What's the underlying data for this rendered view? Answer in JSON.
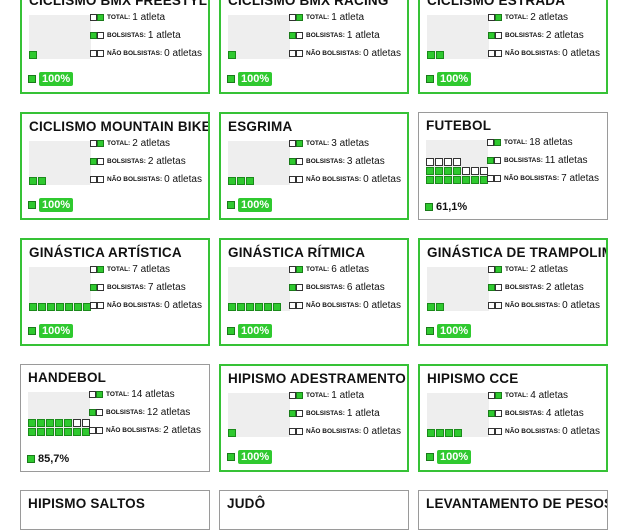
{
  "labels": {
    "total": "Total:",
    "bolsistas": "Bolsistas:",
    "nao_bolsistas": "Não Bolsistas:"
  },
  "cards": [
    {
      "title": "Ciclismo BMX Freestyle",
      "total": "1 atleta",
      "bolsistas": "1 atleta",
      "nao": "0 atletas",
      "pct": "100%",
      "on": 1,
      "off": 0,
      "full": true
    },
    {
      "title": "Ciclismo BMX Racing",
      "total": "1 atleta",
      "bolsistas": "1 atleta",
      "nao": "0 atletas",
      "pct": "100%",
      "on": 1,
      "off": 0,
      "full": true
    },
    {
      "title": "Ciclismo Estrada",
      "total": "2 atletas",
      "bolsistas": "2 atletas",
      "nao": "0 atletas",
      "pct": "100%",
      "on": 2,
      "off": 0,
      "full": true
    },
    {
      "title": "Ciclismo Mountain Bike",
      "total": "2 atletas",
      "bolsistas": "2 atletas",
      "nao": "0 atletas",
      "pct": "100%",
      "on": 2,
      "off": 0,
      "full": true
    },
    {
      "title": "Esgrima",
      "total": "3 atletas",
      "bolsistas": "3 atletas",
      "nao": "0 atletas",
      "pct": "100%",
      "on": 3,
      "off": 0,
      "full": true
    },
    {
      "title": "Futebol",
      "total": "18 atletas",
      "bolsistas": "11 atletas",
      "nao": "7 atletas",
      "pct": "61,1%",
      "on": 11,
      "off": 7,
      "full": false
    },
    {
      "title": "Ginástica Artística",
      "total": "7 atletas",
      "bolsistas": "7 atletas",
      "nao": "0 atletas",
      "pct": "100%",
      "on": 7,
      "off": 0,
      "full": true
    },
    {
      "title": "Ginástica Rítmica",
      "total": "6 atletas",
      "bolsistas": "6 atletas",
      "nao": "0 atletas",
      "pct": "100%",
      "on": 6,
      "off": 0,
      "full": true
    },
    {
      "title": "Ginástica de Trampolim",
      "total": "2 atletas",
      "bolsistas": "2 atletas",
      "nao": "0 atletas",
      "pct": "100%",
      "on": 2,
      "off": 0,
      "full": true
    },
    {
      "title": "Handebol",
      "total": "14 atletas",
      "bolsistas": "12 atletas",
      "nao": "2 atletas",
      "pct": "85,7%",
      "on": 12,
      "off": 2,
      "full": false
    },
    {
      "title": "Hipismo Adestramento",
      "total": "1 atleta",
      "bolsistas": "1 atleta",
      "nao": "0 atletas",
      "pct": "100%",
      "on": 1,
      "off": 0,
      "full": true
    },
    {
      "title": "Hipismo CCE",
      "total": "4 atletas",
      "bolsistas": "4 atletas",
      "nao": "0 atletas",
      "pct": "100%",
      "on": 4,
      "off": 0,
      "full": true
    },
    {
      "title": "Hipismo Saltos",
      "partial": true
    },
    {
      "title": "Judô",
      "partial": true
    },
    {
      "title": "Levantamento de Pesos",
      "partial": true
    }
  ]
}
